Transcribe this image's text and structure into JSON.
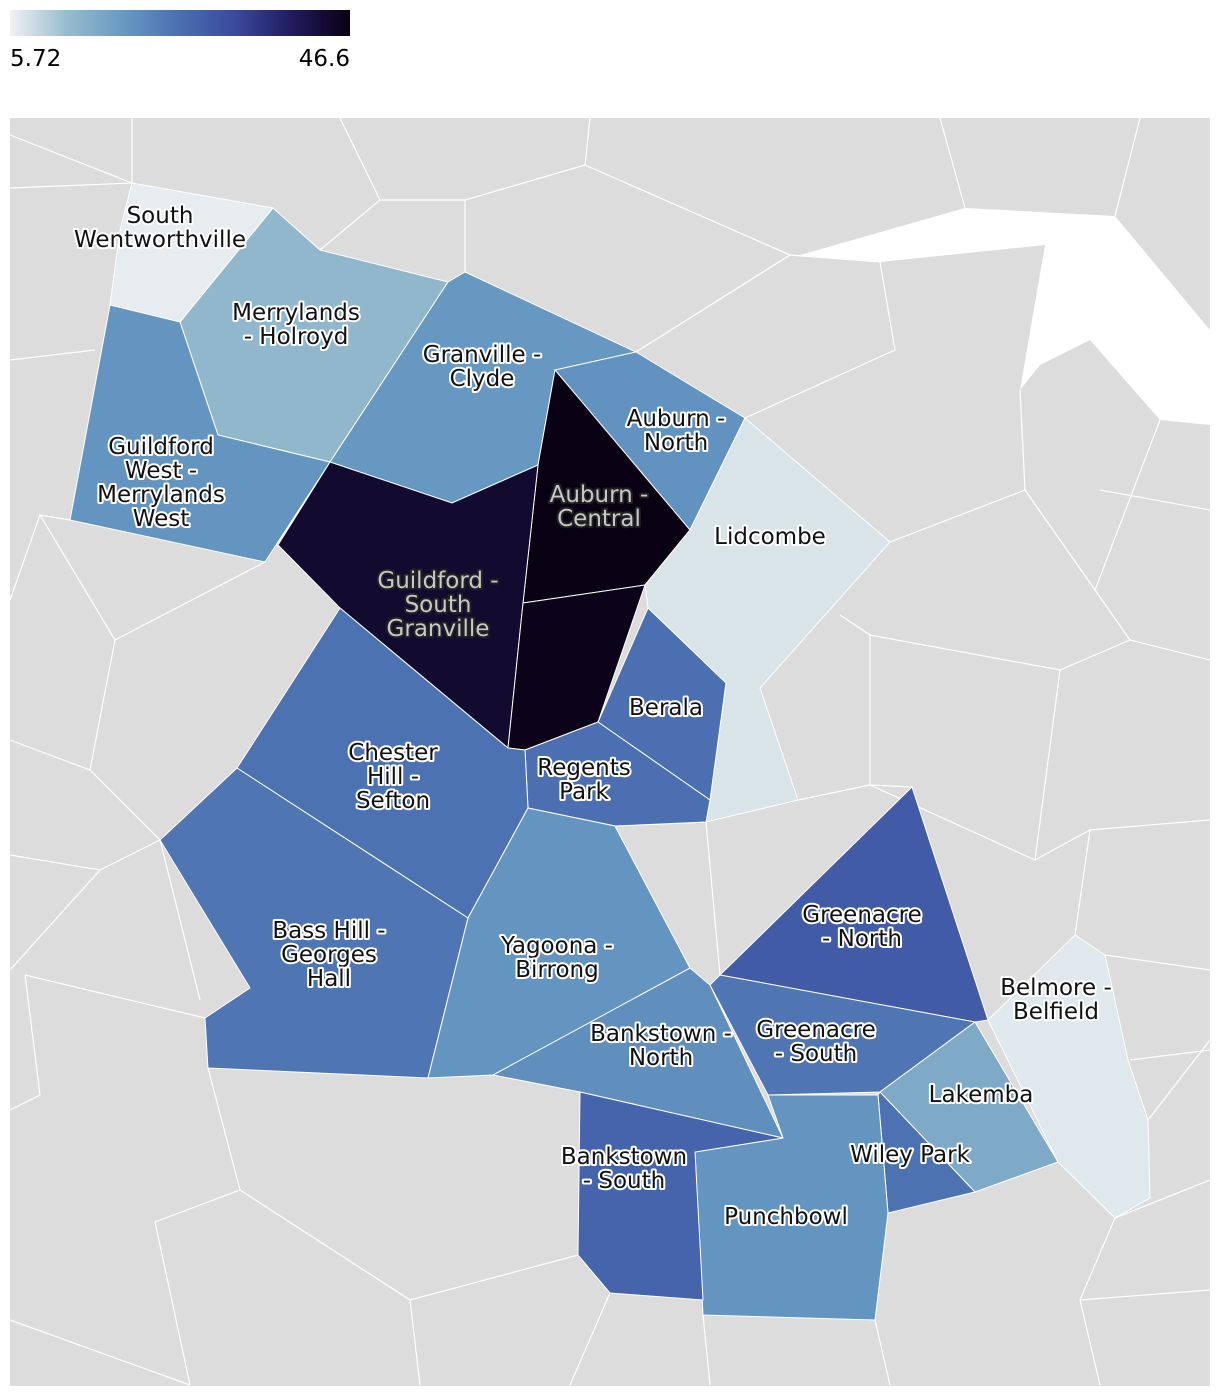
{
  "chart_data": {
    "type": "choropleth",
    "legend": {
      "min": 5.72,
      "max": 46.6,
      "colors": [
        "#f0f2f3",
        "#97bccd",
        "#6799c2",
        "#4a6eb0",
        "#3a489c",
        "#201a5c",
        "#0a0014"
      ]
    },
    "regions": [
      {
        "name": "South Wentworthville",
        "value": 6.5
      },
      {
        "name": "Merrylands - Holroyd",
        "value": 13.5
      },
      {
        "name": "Granville - Clyde",
        "value": 19.5
      },
      {
        "name": "Auburn - North",
        "value": 20.5
      },
      {
        "name": "Guildford West - Merrylands West",
        "value": 20
      },
      {
        "name": "Auburn - Central",
        "value": 46.6
      },
      {
        "name": "Guildford - South Granville",
        "value": 44
      },
      {
        "name": null,
        "value": 46
      },
      {
        "name": "Lidcombe",
        "value": 7.5
      },
      {
        "name": "Berala",
        "value": 26
      },
      {
        "name": "Regents Park",
        "value": 26
      },
      {
        "name": "Chester Hill - Sefton",
        "value": 25.5
      },
      {
        "name": "Bass Hill - Georges Hall",
        "value": 25
      },
      {
        "name": "Yagoona - Birrong",
        "value": 20
      },
      {
        "name": "Bankstown - North",
        "value": 21
      },
      {
        "name": "Greenacre - North",
        "value": 29.5
      },
      {
        "name": "Greenacre - South",
        "value": 25
      },
      {
        "name": "Belmore - Belfield",
        "value": 7
      },
      {
        "name": "Lakemba",
        "value": 16
      },
      {
        "name": "Wiley Park",
        "value": 25.5
      },
      {
        "name": "Punchbowl",
        "value": 20
      },
      {
        "name": "Bankstown - South",
        "value": 28
      }
    ]
  }
}
